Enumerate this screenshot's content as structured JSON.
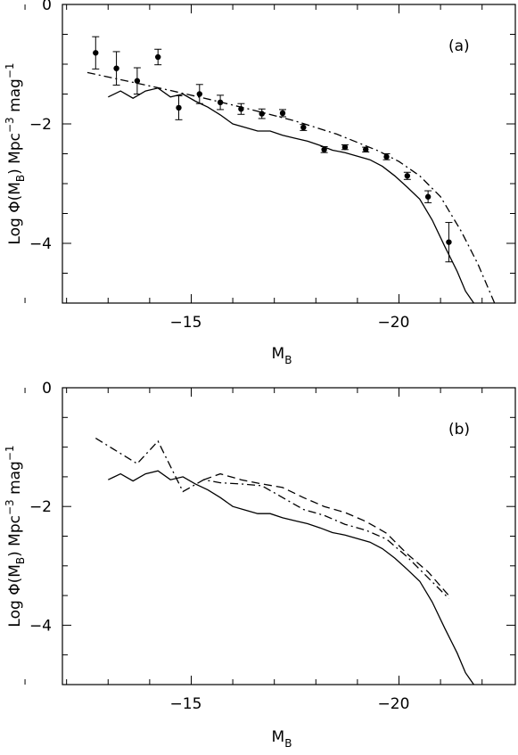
{
  "chart_data": [
    {
      "type": "line",
      "panel_label": "(a)",
      "xlabel_main": "M",
      "xlabel_sub": "B",
      "ylabel": "Log Φ(M_B) Mpc^-3 mag^-1",
      "ylabel_parts": {
        "pre": "Log Φ(M",
        "sub": "B",
        "post": ")  Mpc",
        "sup1": "−3",
        "mid": "  mag",
        "sup2": "−1"
      },
      "xlim": [
        -11.9,
        -22.8
      ],
      "ylim": [
        -5,
        0
      ],
      "x_ticks": [
        -15,
        -20
      ],
      "x_tick_labels": [
        "−15",
        "−20"
      ],
      "y_ticks": [
        0,
        -2,
        -4
      ],
      "y_tick_labels": [
        "0",
        "−2",
        "−4"
      ],
      "series": [
        {
          "style": "points-errorbars",
          "x": [
            -12.7,
            -13.2,
            -13.7,
            -14.2,
            -14.7,
            -15.2,
            -15.7,
            -16.2,
            -16.7,
            -17.2,
            -17.7,
            -18.2,
            -18.7,
            -19.2,
            -19.7,
            -20.2,
            -20.7,
            -21.2
          ],
          "y": [
            -0.81,
            -1.07,
            -1.28,
            -0.88,
            -1.73,
            -1.5,
            -1.64,
            -1.75,
            -1.83,
            -1.82,
            -2.06,
            -2.43,
            -2.39,
            -2.43,
            -2.55,
            -2.87,
            -3.22,
            -3.98
          ],
          "err": [
            0.27,
            0.28,
            0.22,
            0.13,
            0.2,
            0.16,
            0.12,
            0.09,
            0.08,
            0.06,
            0.05,
            0.05,
            0.04,
            0.04,
            0.05,
            0.06,
            0.1,
            0.33
          ]
        },
        {
          "style": "dash-dot",
          "x": [
            -12.5,
            -13.5,
            -14.5,
            -15.5,
            -16.5,
            -17.5,
            -18.5,
            -19.5,
            -20.0,
            -20.5,
            -21.0,
            -21.5,
            -21.9,
            -22.3
          ],
          "y": [
            -1.14,
            -1.29,
            -1.44,
            -1.6,
            -1.77,
            -1.95,
            -2.17,
            -2.45,
            -2.63,
            -2.87,
            -3.22,
            -3.8,
            -4.35,
            -5.0
          ]
        },
        {
          "style": "solid",
          "x": [
            -13.0,
            -13.3,
            -13.6,
            -13.9,
            -14.2,
            -14.5,
            -14.8,
            -15.1,
            -15.4,
            -15.7,
            -16.0,
            -16.3,
            -16.6,
            -16.9,
            -17.2,
            -17.5,
            -17.8,
            -18.1,
            -18.4,
            -18.7,
            -19.0,
            -19.3,
            -19.6,
            -19.9,
            -20.2,
            -20.5,
            -20.8,
            -21.1,
            -21.4,
            -21.6,
            -21.8
          ],
          "y": [
            -1.55,
            -1.45,
            -1.57,
            -1.45,
            -1.4,
            -1.55,
            -1.5,
            -1.62,
            -1.72,
            -1.85,
            -2.0,
            -2.06,
            -2.12,
            -2.12,
            -2.19,
            -2.24,
            -2.29,
            -2.36,
            -2.44,
            -2.48,
            -2.54,
            -2.6,
            -2.71,
            -2.87,
            -3.06,
            -3.26,
            -3.61,
            -4.05,
            -4.47,
            -4.8,
            -5.0
          ]
        }
      ]
    },
    {
      "type": "line",
      "panel_label": "(b)",
      "xlabel_main": "M",
      "xlabel_sub": "B",
      "ylabel": "Log Φ(M_B) Mpc^-3 mag^-1",
      "ylabel_parts": {
        "pre": "Log Φ(M",
        "sub": "B",
        "post": ")  Mpc",
        "sup1": "−3",
        "mid": "  mag",
        "sup2": "−1"
      },
      "xlim": [
        -11.9,
        -22.8
      ],
      "ylim": [
        -5,
        0
      ],
      "x_ticks": [
        -15,
        -20
      ],
      "x_tick_labels": [
        "−15",
        "−20"
      ],
      "y_ticks": [
        0,
        -2,
        -4
      ],
      "y_tick_labels": [
        "0",
        "−2",
        "−4"
      ],
      "series": [
        {
          "style": "solid",
          "x": [
            -13.0,
            -13.3,
            -13.6,
            -13.9,
            -14.2,
            -14.5,
            -14.8,
            -15.1,
            -15.4,
            -15.7,
            -16.0,
            -16.3,
            -16.6,
            -16.9,
            -17.2,
            -17.5,
            -17.8,
            -18.1,
            -18.4,
            -18.7,
            -19.0,
            -19.3,
            -19.6,
            -19.9,
            -20.2,
            -20.5,
            -20.8,
            -21.1,
            -21.4,
            -21.6,
            -21.8
          ],
          "y": [
            -1.55,
            -1.45,
            -1.57,
            -1.45,
            -1.4,
            -1.55,
            -1.5,
            -1.62,
            -1.72,
            -1.85,
            -2.0,
            -2.06,
            -2.12,
            -2.12,
            -2.19,
            -2.24,
            -2.29,
            -2.36,
            -2.44,
            -2.48,
            -2.54,
            -2.6,
            -2.71,
            -2.87,
            -3.06,
            -3.26,
            -3.61,
            -4.05,
            -4.47,
            -4.8,
            -5.0
          ]
        },
        {
          "style": "dash-dot",
          "x": [
            -12.7,
            -13.7,
            -14.2,
            -14.8,
            -15.3,
            -15.7,
            -16.2,
            -16.7,
            -17.2,
            -17.7,
            -18.2,
            -18.7,
            -19.2,
            -19.7,
            -20.2,
            -20.7,
            -21.2
          ],
          "y": [
            -0.85,
            -1.28,
            -0.9,
            -1.75,
            -1.55,
            -1.6,
            -1.62,
            -1.65,
            -1.85,
            -2.05,
            -2.15,
            -2.3,
            -2.4,
            -2.55,
            -2.85,
            -3.2,
            -3.55
          ]
        },
        {
          "style": "dashed",
          "x": [
            -15.3,
            -15.7,
            -16.2,
            -16.7,
            -17.2,
            -17.7,
            -18.2,
            -18.7,
            -19.2,
            -19.7,
            -20.2,
            -20.7,
            -21.2
          ],
          "y": [
            -1.55,
            -1.45,
            -1.55,
            -1.62,
            -1.68,
            -1.85,
            -2.0,
            -2.1,
            -2.25,
            -2.45,
            -2.8,
            -3.1,
            -3.5
          ]
        }
      ]
    }
  ]
}
